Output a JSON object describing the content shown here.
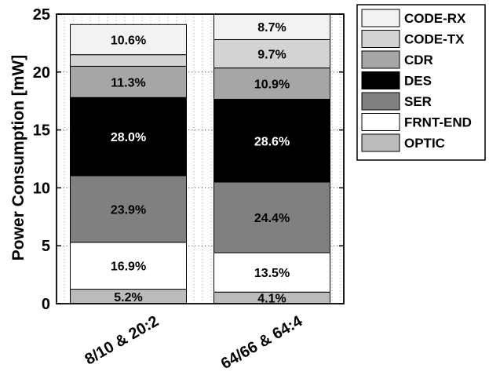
{
  "chart_data": {
    "type": "bar",
    "stacked": true,
    "ylabel": "Power Consumption [mW]",
    "ylim": [
      0,
      25
    ],
    "yticks": [
      "0",
      "5",
      "10",
      "15",
      "20",
      "25"
    ],
    "categories": [
      "8/10 & 20:2",
      "64/66 & 64:4"
    ],
    "grid": "dotted",
    "legend_position": "right",
    "series": [
      {
        "name": "OPTIC",
        "color": "#bbbbbb",
        "label_color": "#000000",
        "values": [
          1.25,
          1.0
        ],
        "labels": [
          "5.2%",
          "4.1%"
        ]
      },
      {
        "name": "FRNT-END",
        "color": "#ffffff",
        "label_color": "#000000",
        "values": [
          4.05,
          3.4
        ],
        "labels": [
          "16.9%",
          "13.5%"
        ]
      },
      {
        "name": "SER",
        "color": "#808080",
        "label_color": "#000000",
        "values": [
          5.75,
          6.1
        ],
        "labels": [
          "23.9%",
          "24.4%"
        ]
      },
      {
        "name": "DES",
        "color": "#000000",
        "label_color": "#ffffff",
        "values": [
          6.75,
          7.15
        ],
        "labels": [
          "28.0%",
          "28.6%"
        ]
      },
      {
        "name": "CDR",
        "color": "#a6a6a6",
        "label_color": "#000000",
        "values": [
          2.7,
          2.7
        ],
        "labels": [
          "11.3%",
          "10.9%"
        ]
      },
      {
        "name": "CODE-TX",
        "color": "#d3d3d3",
        "label_color": "#000000",
        "values": [
          1.0,
          2.45
        ],
        "labels": [
          "",
          "9.7%"
        ]
      },
      {
        "name": "CODE-RX",
        "color": "#f2f2f2",
        "label_color": "#000000",
        "values": [
          2.6,
          2.2
        ],
        "labels": [
          "10.6%",
          "8.7%"
        ]
      }
    ],
    "legend": [
      "CODE-RX",
      "CODE-TX",
      "CDR",
      "DES",
      "SER",
      "FRNT-END",
      "OPTIC"
    ]
  }
}
